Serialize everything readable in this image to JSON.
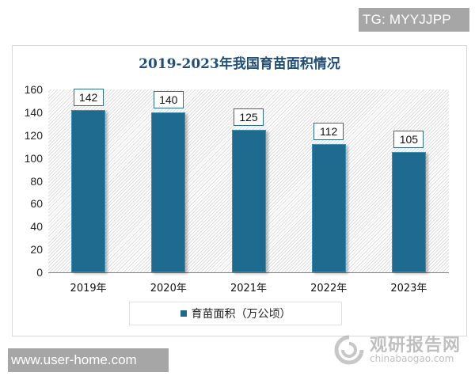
{
  "badges": {
    "top_right": "TG: MYYJJPP",
    "bottom_left": "www.user-home.com"
  },
  "watermark": {
    "logo_icon": "swirl-logo-icon",
    "name_cn": "观研报告网",
    "domain": "chinabaogao.com"
  },
  "colors": {
    "bar": "#1f6a8f",
    "title": "#1f4e79",
    "badge": "#a6a6a6"
  },
  "chart_data": {
    "type": "bar",
    "title": "2019-2023年我国育苗面积情况",
    "categories": [
      "2019年",
      "2020年",
      "2021年",
      "2022年",
      "2023年"
    ],
    "series": [
      {
        "name": "育苗面积（万公顷）",
        "values": [
          142,
          140,
          125,
          112,
          105
        ]
      }
    ],
    "values": [
      142,
      140,
      125,
      112,
      105
    ],
    "xlabel": "",
    "ylabel": "",
    "ylim": [
      0,
      160
    ],
    "yticks": [
      0,
      20,
      40,
      60,
      80,
      100,
      120,
      140,
      160
    ],
    "data_labels": [
      "142",
      "140",
      "125",
      "112",
      "105"
    ],
    "legend": {
      "position": "bottom",
      "entries": [
        "育苗面积（万公顷）"
      ]
    },
    "grid": false,
    "background": "diagonal-hatch"
  }
}
